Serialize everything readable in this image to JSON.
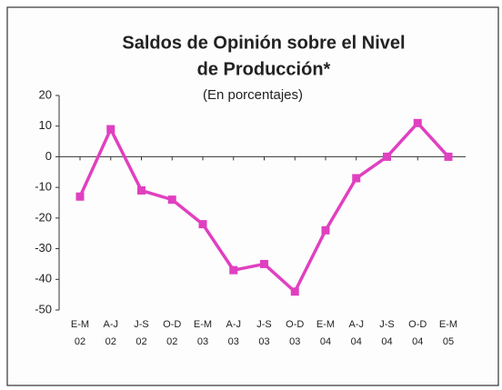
{
  "chart_data": {
    "type": "line",
    "title": [
      "Saldos de Opinión sobre el Nivel",
      "de Producción*"
    ],
    "subtitle": "(En porcentajes)",
    "categories": [
      [
        "E-M",
        "02"
      ],
      [
        "A-J",
        "02"
      ],
      [
        "J-S",
        "02"
      ],
      [
        "O-D",
        "02"
      ],
      [
        "E-M",
        "03"
      ],
      [
        "A-J",
        "03"
      ],
      [
        "J-S",
        "03"
      ],
      [
        "O-D",
        "03"
      ],
      [
        "E-M",
        "04"
      ],
      [
        "A-J",
        "04"
      ],
      [
        "J-S",
        "04"
      ],
      [
        "O-D",
        "04"
      ],
      [
        "E-M",
        "05"
      ]
    ],
    "series": [
      {
        "color": "#e040c0",
        "values": [
          -13,
          9,
          -11,
          -14,
          -22,
          -37,
          -35,
          -44,
          -24,
          -7,
          0,
          11,
          0
        ]
      }
    ],
    "ylim": [
      -50,
      20
    ],
    "yticks": [
      -50,
      -40,
      -30,
      -20,
      -10,
      0,
      10,
      20
    ]
  }
}
